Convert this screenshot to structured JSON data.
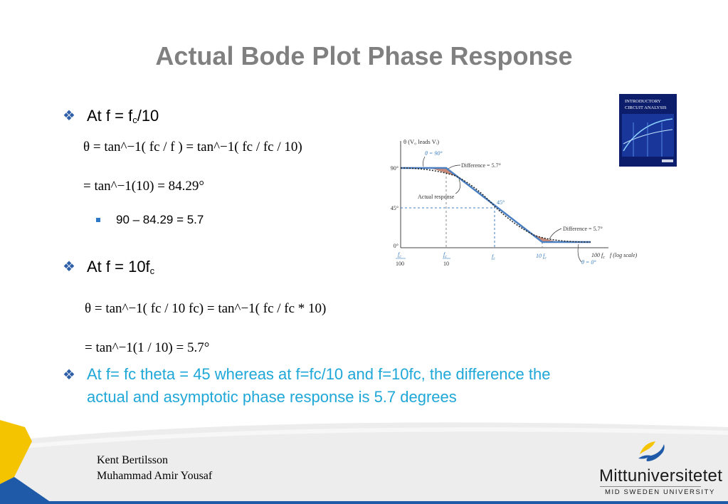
{
  "title": "Actual Bode Plot Phase Response",
  "bullets": {
    "b1": {
      "prefix": "At f = f",
      "sub": "c",
      "suffix": "/10"
    },
    "eq1": "θ = tan^−1( fc / f ) = tan^−1( fc / fc / 10)",
    "eq2": "= tan^−1(10) = 84.29°",
    "sub1": "90 – 84.29 = 5.7",
    "b2": {
      "prefix": "At f = 10f",
      "sub": "c"
    },
    "eq3": "θ = tan^−1( fc / 10 fc) = tan^−1( fc / fc * 10)",
    "eq4": "= tan^−1(1 / 10) = 5.7°",
    "b3_line1": "At  f= fc theta = 45 whereas at f=fc/10 and f=10fc, the difference the",
    "b3_line2": "actual and asymptotic phase response is 5.7 degrees"
  },
  "book": {
    "line1": "INTRODUCTORY",
    "line2": "CIRCUIT ANALYSIS"
  },
  "figure": {
    "ylabel": "θ (V₀ leads Vᵢ)",
    "y90": "90°",
    "y45": "45°",
    "y0": "0°",
    "theta90": "θ = 90°",
    "theta0": "θ = 0°",
    "diff_top": "Difference = 5.7°",
    "diff_bottom": "Difference = 5.7°",
    "actual": "Actual response",
    "deg45": "45°",
    "x_ticks": [
      {
        "num": "f",
        "sub": "c",
        "den": "100"
      },
      {
        "num": "f",
        "sub": "c",
        "den": "10"
      },
      {
        "num": "f",
        "sub": "c",
        "den": ""
      },
      {
        "num": "10 f",
        "sub": "c",
        "den": ""
      },
      {
        "num": "100 f",
        "sub": "c",
        "den": ""
      }
    ],
    "xlabel": "f (log scale)",
    "colors": {
      "asymptote": "#4a7fc1",
      "fill": "#c98a78",
      "dashed": "#3c7fbf"
    }
  },
  "footer": {
    "name1": "Kent Bertilsson",
    "name2": "Muhammad Amir Yousaf"
  },
  "logo": {
    "name": "Mittuniversitetet",
    "sub": "MID SWEDEN UNIVERSITY",
    "colors": {
      "yellow": "#f5c400",
      "blue": "#1f5aa8"
    }
  },
  "colors": {
    "title": "#808080",
    "accent": "#1fa7d8",
    "bullet": "#2e5fa8"
  }
}
